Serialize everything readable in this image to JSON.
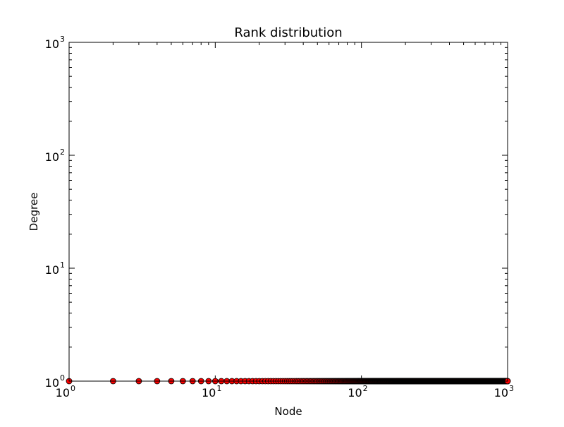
{
  "chart_data": {
    "type": "scatter",
    "title": "Rank distribution",
    "xlabel": "Node",
    "ylabel": "Degree",
    "xscale": "log",
    "yscale": "log",
    "xlim": [
      1,
      1000
    ],
    "ylim": [
      1,
      1000
    ],
    "x_ticks": [
      {
        "base": "10",
        "exp": "0",
        "value": 1
      },
      {
        "base": "10",
        "exp": "1",
        "value": 10
      },
      {
        "base": "10",
        "exp": "2",
        "value": 100
      },
      {
        "base": "10",
        "exp": "3",
        "value": 1000
      }
    ],
    "y_ticks": [
      {
        "base": "10",
        "exp": "0",
        "value": 1
      },
      {
        "base": "10",
        "exp": "1",
        "value": 10
      },
      {
        "base": "10",
        "exp": "2",
        "value": 100
      },
      {
        "base": "10",
        "exp": "3",
        "value": 1000
      }
    ],
    "grid": false,
    "legend": "none",
    "series": [
      {
        "marker": "circle",
        "color": "#ff0000",
        "edge_color": "#000000",
        "x_range": [
          1,
          1000
        ],
        "y_value": 1
      }
    ]
  }
}
